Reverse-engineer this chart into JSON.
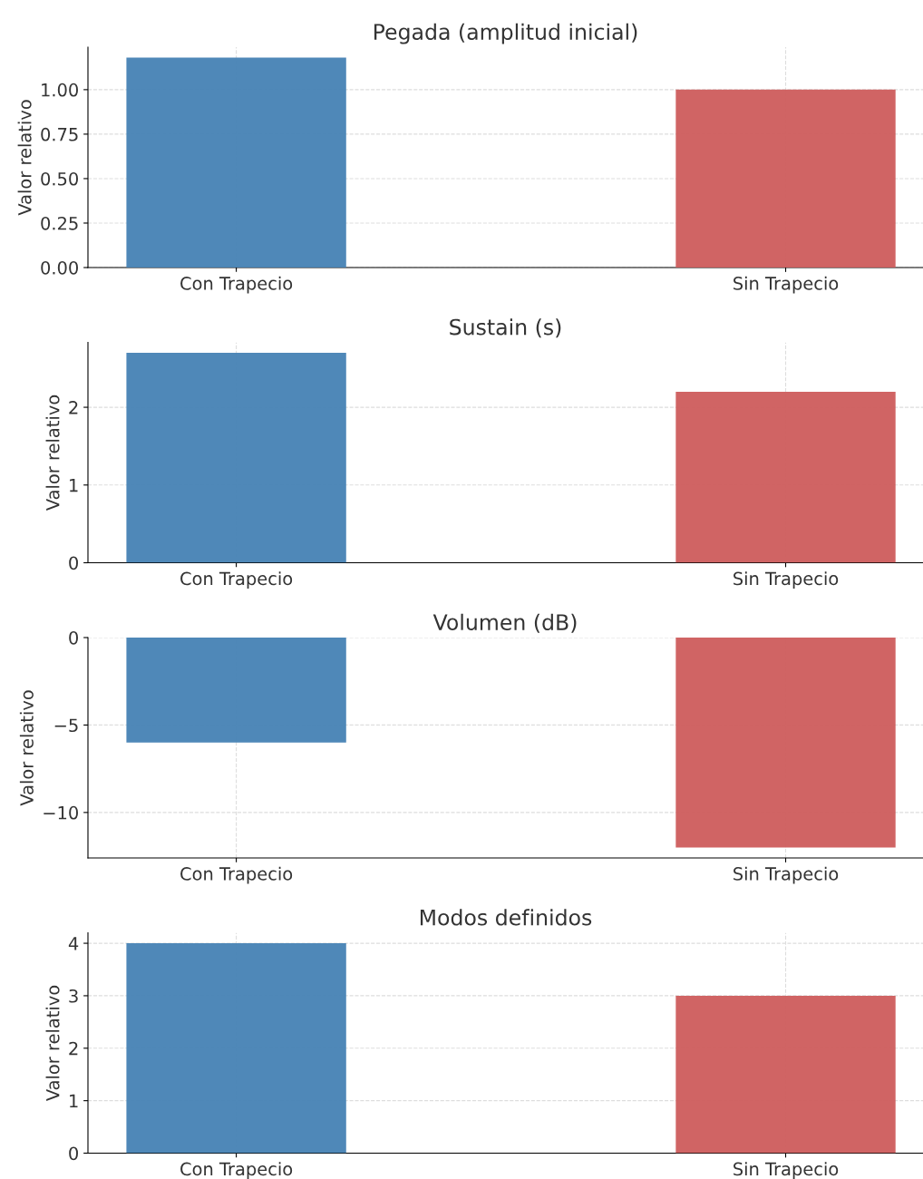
{
  "chart_data": [
    {
      "type": "bar",
      "title": "Pegada (amplitud inicial)",
      "ylabel": "Valor relativo",
      "categories": [
        "Con Trapecio",
        "Sin Trapecio"
      ],
      "values": [
        1.18,
        1.0
      ],
      "colors": [
        "#4682b4",
        "#cd5c5c"
      ],
      "ylim": [
        0,
        1.239
      ],
      "yticks": [
        {
          "value": 0,
          "label": "0.00"
        },
        {
          "value": 0.25,
          "label": "0.25"
        },
        {
          "value": 0.5,
          "label": "0.50"
        },
        {
          "value": 0.75,
          "label": "0.75"
        },
        {
          "value": 1.0,
          "label": "1.00"
        }
      ],
      "grid": true
    },
    {
      "type": "bar",
      "title": "Sustain (s)",
      "ylabel": "Valor relativo",
      "categories": [
        "Con Trapecio",
        "Sin Trapecio"
      ],
      "values": [
        2.7,
        2.2
      ],
      "colors": [
        "#4682b4",
        "#cd5c5c"
      ],
      "ylim": [
        0,
        2.835
      ],
      "yticks": [
        0,
        1,
        2
      ],
      "grid": true
    },
    {
      "type": "bar",
      "title": "Volumen (dB)",
      "ylabel": "Valor relativo",
      "categories": [
        "Con Trapecio",
        "Sin Trapecio"
      ],
      "values": [
        -6,
        -12
      ],
      "colors": [
        "#4682b4",
        "#cd5c5c"
      ],
      "ylim": [
        -12.6,
        0
      ],
      "yticks": [
        {
          "value": -10,
          "label": "−10"
        },
        {
          "value": -5,
          "label": "−5"
        },
        0
      ],
      "grid": true
    },
    {
      "type": "bar",
      "title": "Modos definidos",
      "ylabel": "Valor relativo",
      "categories": [
        "Con Trapecio",
        "Sin Trapecio"
      ],
      "values": [
        4,
        3
      ],
      "colors": [
        "#4682b4",
        "#cd5c5c"
      ],
      "ylim": [
        0,
        4.2
      ],
      "yticks": [
        0,
        1,
        2,
        3,
        4
      ],
      "grid": true
    }
  ]
}
